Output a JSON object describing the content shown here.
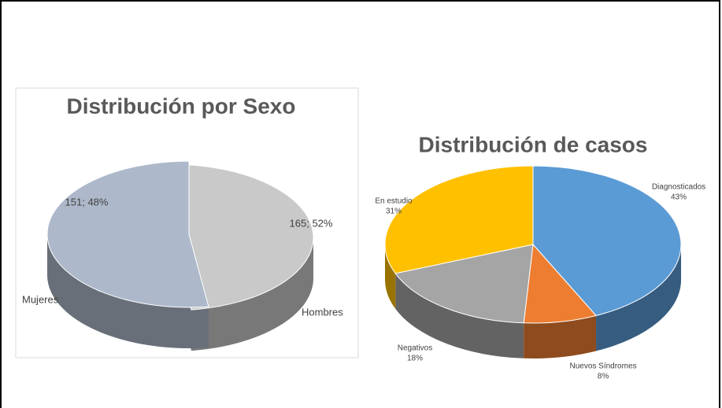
{
  "chart_data": [
    {
      "type": "pie",
      "title": "Distribución por Sexo",
      "categories": [
        "Mujeres",
        "Hombres"
      ],
      "values": [
        151,
        165
      ],
      "value_labels": [
        "151; 48%",
        "165; 52%"
      ],
      "colors": [
        "#c9c9c9",
        "#adb9ca"
      ],
      "explode": [
        0
      ]
    },
    {
      "type": "pie",
      "title": "Distribución de casos",
      "categories": [
        "Diagnosticados",
        "Nuevos Síndromes",
        "Negativos",
        "En estudio"
      ],
      "values": [
        43,
        8,
        18,
        31
      ],
      "value_labels": [
        "43%",
        "8%",
        "18%",
        "31%"
      ],
      "colors": [
        "#5b9bd5",
        "#ed7d31",
        "#a5a5a5",
        "#ffc000"
      ],
      "explode": []
    }
  ]
}
